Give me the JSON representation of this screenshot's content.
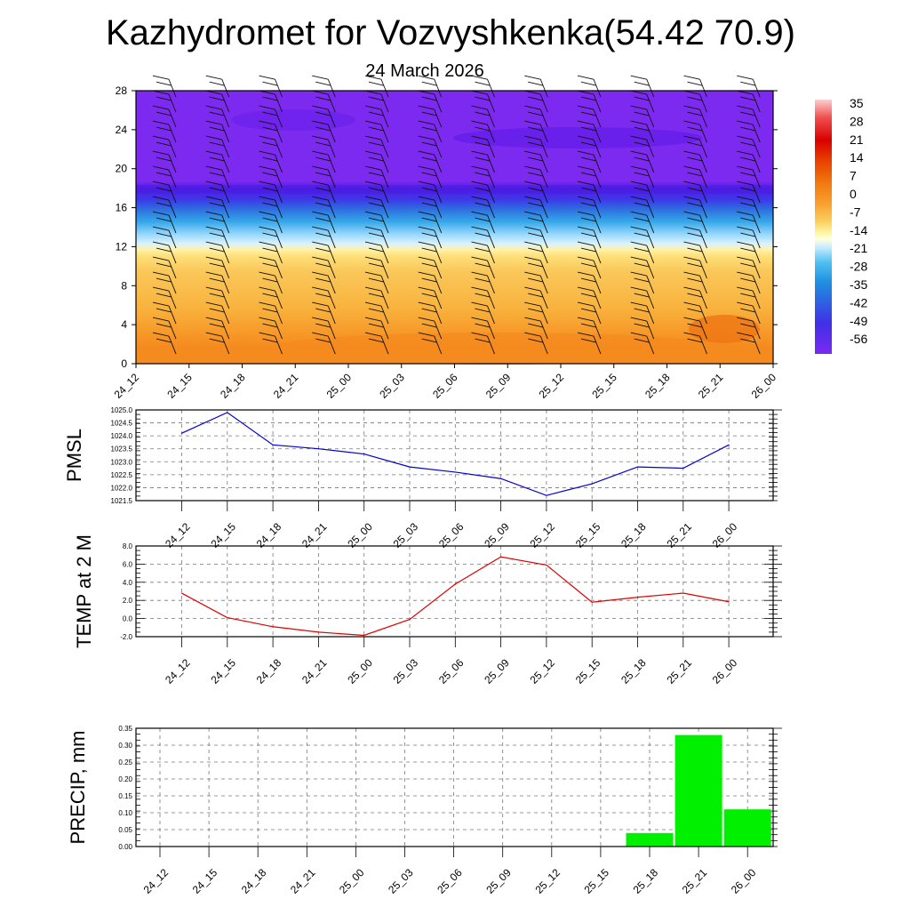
{
  "title": "Kazhydromet for Vozvyshkenka(54.42 70.9)",
  "subtitle": "24 March 2026",
  "time_labels": [
    "24_12",
    "24_15",
    "24_18",
    "24_21",
    "25_00",
    "25_03",
    "25_06",
    "25_09",
    "25_12",
    "25_15",
    "25_18",
    "25_21",
    "26_00"
  ],
  "chart_data": [
    {
      "type": "heatmap",
      "name": "temperature-wind-cross-section",
      "x": [
        "24_12",
        "24_15",
        "24_18",
        "24_21",
        "25_00",
        "25_03",
        "25_06",
        "25_09",
        "25_12",
        "25_15",
        "25_18",
        "25_21",
        "26_00"
      ],
      "ylim": [
        0,
        28
      ],
      "yticks": [
        0,
        4,
        8,
        12,
        16,
        20,
        24,
        28
      ],
      "colorbar_labels": [
        "35",
        "28",
        "21",
        "14",
        "7",
        "0",
        "-7",
        "-14",
        "-21",
        "-28",
        "-35",
        "-42",
        "-49",
        "-56"
      ],
      "colors": {
        "low_level": "#F9B23C",
        "surface_warm": "#F58A1E",
        "transition": "#FFF2A8",
        "mid_blue": "#35A8E8",
        "upper": "#7C2AF0",
        "upper_dark": "#5A18E6"
      }
    },
    {
      "type": "line",
      "name": "pmsl",
      "ylabel": "PMSL",
      "x": [
        "24_12",
        "24_15",
        "24_18",
        "24_21",
        "25_00",
        "25_03",
        "25_06",
        "25_09",
        "25_12",
        "25_15",
        "25_18",
        "25_21",
        "26_00"
      ],
      "values": [
        1024.1,
        1024.9,
        1023.65,
        1023.5,
        1023.3,
        1022.8,
        1022.6,
        1022.35,
        1021.7,
        1022.15,
        1022.8,
        1022.75,
        1023.65
      ],
      "ylim": [
        1021.5,
        1025.0
      ],
      "yticks": [
        "1021.5",
        "1022.0",
        "1022.5",
        "1023.0",
        "1023.5",
        "1024.0",
        "1024.5",
        "1025.0"
      ],
      "color": "#0000CC"
    },
    {
      "type": "line",
      "name": "temp-2m",
      "ylabel": "TEMP at 2 M",
      "x": [
        "24_12",
        "24_15",
        "24_18",
        "24_21",
        "25_00",
        "25_03",
        "25_06",
        "25_09",
        "25_12",
        "25_15",
        "25_18",
        "25_21",
        "26_00"
      ],
      "values": [
        2.8,
        0.1,
        -0.9,
        -1.5,
        -1.85,
        -0.1,
        3.8,
        6.8,
        5.9,
        1.8,
        2.35,
        2.8,
        1.85
      ],
      "ylim": [
        -2.0,
        8.0
      ],
      "yticks": [
        "-2.0",
        "0.0",
        "2.0",
        "4.0",
        "6.0",
        "8.0"
      ],
      "color": "#E00000"
    },
    {
      "type": "bar",
      "name": "precip",
      "ylabel": "PRECIP, mm",
      "categories": [
        "24_12",
        "24_15",
        "24_18",
        "24_21",
        "25_00",
        "25_03",
        "25_06",
        "25_09",
        "25_12",
        "25_15",
        "25_18",
        "25_21",
        "26_00"
      ],
      "values": [
        0,
        0,
        0,
        0,
        0,
        0,
        0,
        0,
        0,
        0,
        0.04,
        0.33,
        0.11
      ],
      "ylim": [
        0,
        0.35
      ],
      "yticks": [
        "0.00",
        "0.05",
        "0.10",
        "0.15",
        "0.20",
        "0.25",
        "0.30",
        "0.35"
      ],
      "color": "#00F000"
    }
  ]
}
